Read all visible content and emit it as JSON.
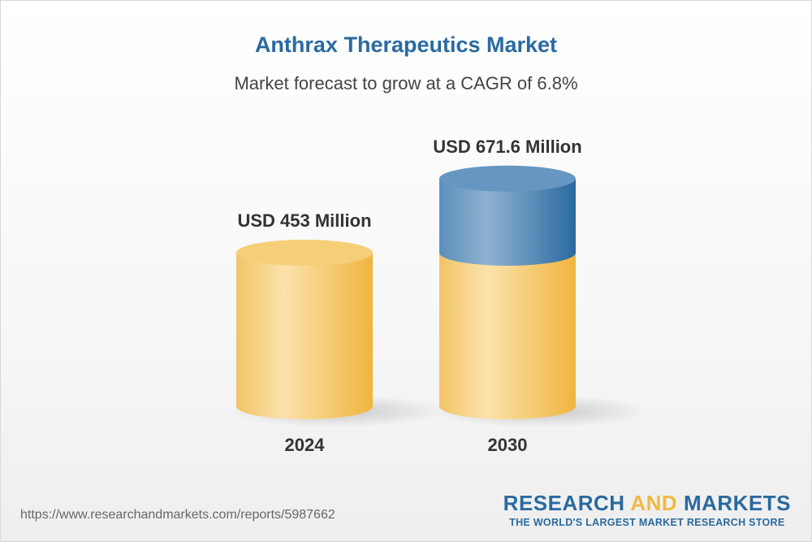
{
  "chart_data": {
    "type": "bar",
    "style": "3d-cylinder",
    "title": "Anthrax Therapeutics Market",
    "subtitle": "Market forecast to grow at a CAGR of 6.8%",
    "categories": [
      "2024",
      "2030"
    ],
    "values": [
      453,
      671.6
    ],
    "data_labels": [
      "USD 453 Million",
      "USD 671.6 Million"
    ],
    "unit": "USD Million",
    "colors": {
      "base": "#f2c05a",
      "growth": "#2e6ea3"
    }
  },
  "footer": {
    "url": "https://www.researchandmarkets.com/reports/5987662",
    "logo_word1": "RESEARCH",
    "logo_word2": "AND",
    "logo_word3": "MARKETS",
    "logo_tagline": "THE WORLD'S LARGEST MARKET RESEARCH STORE"
  }
}
